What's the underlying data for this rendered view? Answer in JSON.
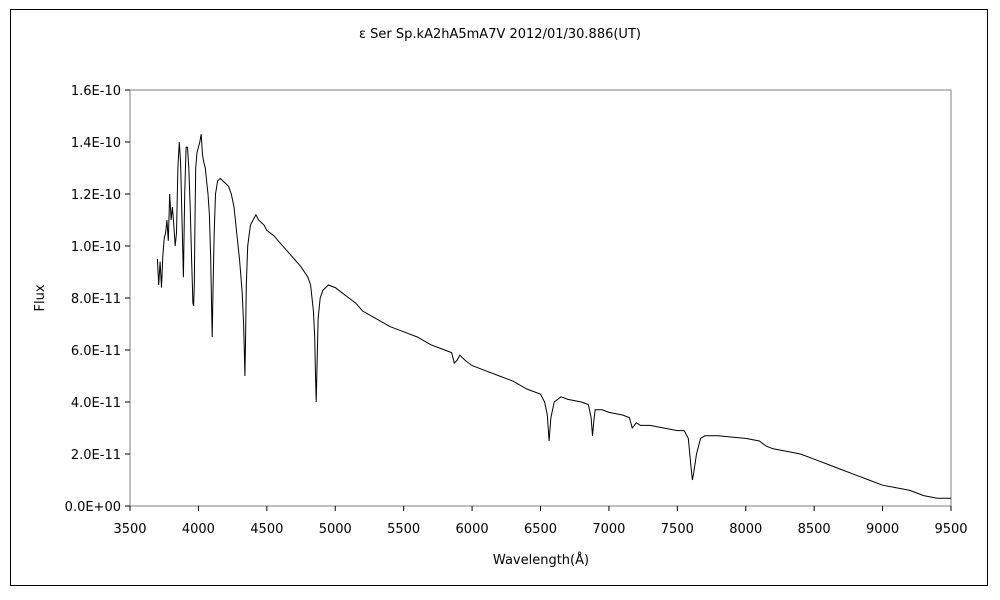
{
  "chart_data": {
    "type": "line",
    "title": "ε Ser   Sp.kA2hA5mA7V   2012/01/30.886(UT)",
    "xlabel": "Wavelength(Å)",
    "ylabel": "Flux",
    "xlim": [
      3500,
      9500
    ],
    "ylim": [
      0,
      1.6e-10
    ],
    "x_ticks": [
      "3500",
      "4000",
      "4500",
      "5000",
      "5500",
      "6000",
      "6500",
      "7000",
      "7500",
      "8000",
      "8500",
      "9000",
      "9500"
    ],
    "y_ticks": [
      "0.0E+00",
      "2.0E-11",
      "4.0E-11",
      "6.0E-11",
      "8.0E-11",
      "1.0E-10",
      "1.2E-10",
      "1.4E-10",
      "1.6E-10"
    ],
    "grid": false,
    "legend": "none",
    "line_color": "#000000",
    "series": [
      {
        "x": [
          3700,
          3710,
          3720,
          3730,
          3740,
          3750,
          3760,
          3770,
          3780,
          3790,
          3800,
          3810,
          3820,
          3830,
          3840,
          3850,
          3860,
          3870,
          3880,
          3890,
          3900,
          3910,
          3920,
          3930,
          3940,
          3950,
          3960,
          3965,
          3970,
          3975,
          3980,
          3990,
          4000,
          4010,
          4020,
          4030,
          4040,
          4050,
          4060,
          4070,
          4080,
          4090,
          4095,
          4101,
          4107,
          4115,
          4125,
          4140,
          4160,
          4180,
          4200,
          4220,
          4240,
          4260,
          4280,
          4300,
          4320,
          4330,
          4335,
          4340,
          4345,
          4350,
          4360,
          4380,
          4400,
          4420,
          4440,
          4460,
          4480,
          4500,
          4550,
          4600,
          4650,
          4700,
          4750,
          4800,
          4820,
          4840,
          4850,
          4855,
          4861,
          4867,
          4875,
          4890,
          4910,
          4950,
          5000,
          5050,
          5100,
          5150,
          5200,
          5300,
          5400,
          5500,
          5600,
          5700,
          5800,
          5850,
          5870,
          5890,
          5910,
          5950,
          6000,
          6100,
          6200,
          6300,
          6400,
          6500,
          6530,
          6550,
          6563,
          6576,
          6600,
          6650,
          6700,
          6800,
          6850,
          6870,
          6880,
          6890,
          6900,
          6950,
          7000,
          7100,
          7150,
          7170,
          7200,
          7230,
          7300,
          7400,
          7500,
          7550,
          7580,
          7600,
          7610,
          7620,
          7640,
          7670,
          7700,
          7800,
          7900,
          8000,
          8100,
          8150,
          8200,
          8300,
          8400,
          8500,
          8600,
          8700,
          8800,
          8900,
          9000,
          9100,
          9200,
          9300,
          9400,
          9450,
          9500
        ],
        "y": [
          9.5e-11,
          8.5e-11,
          9.4e-11,
          8.4e-11,
          9.6e-11,
          1.03e-10,
          1.05e-10,
          1.1e-10,
          1.02e-10,
          1.2e-10,
          1.1e-10,
          1.15e-10,
          1.08e-10,
          1e-10,
          1.05e-10,
          1.3e-10,
          1.4e-10,
          1.32e-10,
          1.1e-10,
          8.8e-11,
          1.2e-10,
          1.38e-10,
          1.38e-10,
          1.3e-10,
          1.15e-10,
          9.5e-11,
          7.8e-11,
          7.7e-11,
          8.5e-11,
          1.1e-10,
          1.3e-10,
          1.36e-10,
          1.38e-10,
          1.4e-10,
          1.43e-10,
          1.35e-10,
          1.32e-10,
          1.3e-10,
          1.25e-10,
          1.2e-10,
          1.12e-10,
          9.5e-11,
          8e-11,
          6.5e-11,
          8.5e-11,
          1.05e-10,
          1.2e-10,
          1.25e-10,
          1.26e-10,
          1.25e-10,
          1.24e-10,
          1.23e-10,
          1.2e-10,
          1.15e-10,
          1.05e-10,
          9.5e-11,
          8.2e-11,
          7e-11,
          6e-11,
          5e-11,
          6.5e-11,
          8.5e-11,
          1e-10,
          1.08e-10,
          1.1e-10,
          1.12e-10,
          1.1e-10,
          1.09e-10,
          1.08e-10,
          1.06e-10,
          1.04e-10,
          1.01e-10,
          9.8e-11,
          9.5e-11,
          9.2e-11,
          8.8e-11,
          8.5e-11,
          7.5e-11,
          6.5e-11,
          5.2e-11,
          4e-11,
          5.5e-11,
          7.2e-11,
          8e-11,
          8.3e-11,
          8.5e-11,
          8.4e-11,
          8.2e-11,
          8e-11,
          7.8e-11,
          7.5e-11,
          7.2e-11,
          6.9e-11,
          6.7e-11,
          6.5e-11,
          6.2e-11,
          6e-11,
          5.9e-11,
          5.5e-11,
          5.6e-11,
          5.8e-11,
          5.6e-11,
          5.4e-11,
          5.2e-11,
          5e-11,
          4.8e-11,
          4.5e-11,
          4.3e-11,
          4e-11,
          3.5e-11,
          2.5e-11,
          3.4e-11,
          4e-11,
          4.2e-11,
          4.1e-11,
          4e-11,
          3.9e-11,
          3.4e-11,
          2.7e-11,
          3.3e-11,
          3.7e-11,
          3.7e-11,
          3.6e-11,
          3.5e-11,
          3.4e-11,
          3e-11,
          3.2e-11,
          3.1e-11,
          3.1e-11,
          3e-11,
          2.9e-11,
          2.9e-11,
          2.6e-11,
          1.5e-11,
          1e-11,
          1.3e-11,
          2e-11,
          2.6e-11,
          2.7e-11,
          2.7e-11,
          2.65e-11,
          2.6e-11,
          2.5e-11,
          2.3e-11,
          2.2e-11,
          2.1e-11,
          2e-11,
          1.8e-11,
          1.6e-11,
          1.4e-11,
          1.2e-11,
          1e-11,
          8e-12,
          7e-12,
          6e-12,
          4e-12,
          3e-12,
          3e-12,
          3e-12
        ]
      }
    ]
  }
}
